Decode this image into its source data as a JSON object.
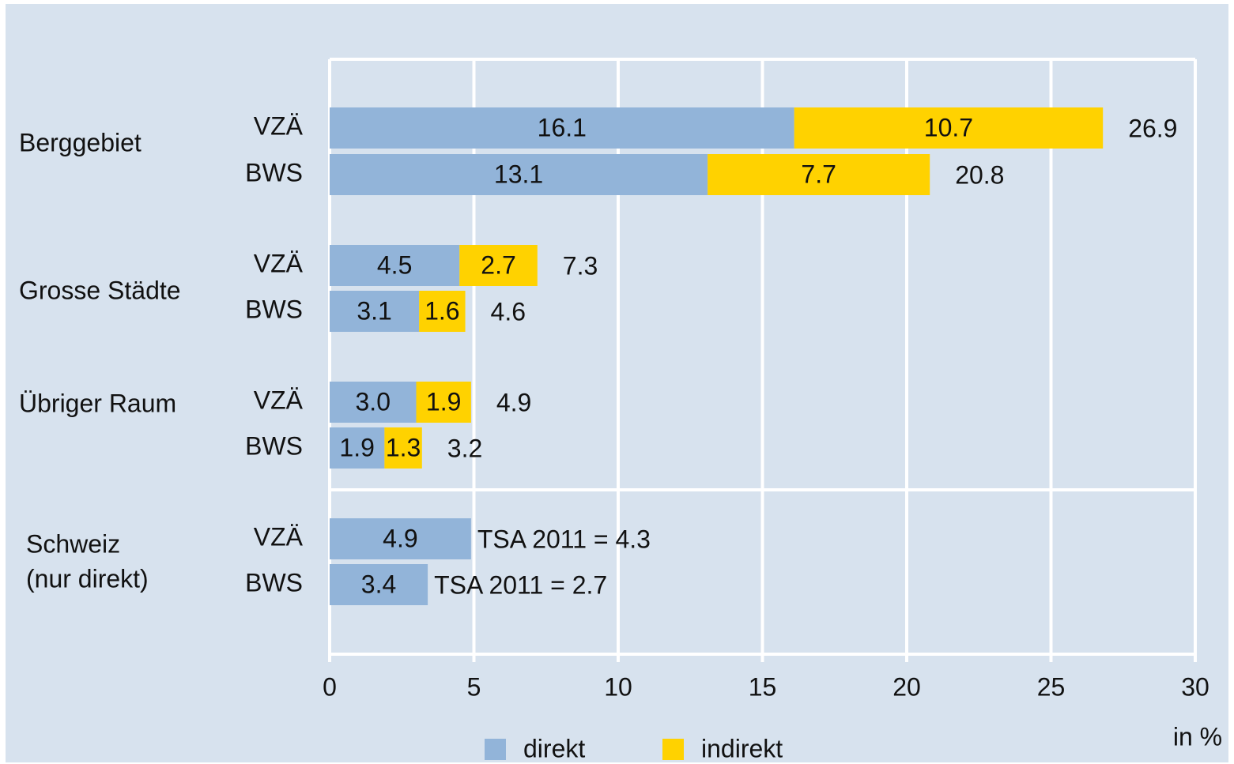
{
  "chart_data": {
    "type": "bar",
    "orientation": "horizontal",
    "stacked": true,
    "groups": [
      [
        "Berggebiet"
      ],
      [
        "Grosse Städte"
      ],
      [
        "Übriger Raum"
      ],
      [
        "Schweiz",
        "(nur direkt)"
      ]
    ],
    "categories": [
      "VZÄ",
      "BWS",
      "VZÄ",
      "BWS",
      "VZÄ",
      "BWS",
      "VZÄ",
      "BWS"
    ],
    "series": [
      {
        "name": "direkt",
        "color": "#92b4d9",
        "values": [
          16.1,
          13.1,
          4.5,
          3.1,
          3.0,
          1.9,
          4.9,
          3.4
        ],
        "value_labels": [
          "16.1",
          "13.1",
          "4.5",
          "3.1",
          "3.0",
          "1.9",
          "4.9",
          "3.4"
        ]
      },
      {
        "name": "indirekt",
        "color": "#ffd200",
        "values": [
          10.7,
          7.7,
          2.7,
          1.6,
          1.9,
          1.3,
          null,
          null
        ]
      }
    ],
    "totals": [
      26.9,
      20.8,
      7.3,
      4.6,
      4.9,
      3.2
    ],
    "annotations": [
      "TSA 2011 = 4.3",
      "TSA 2011 = 2.7"
    ],
    "xlim": [
      0,
      30
    ],
    "xticks": [
      0,
      5,
      10,
      15,
      20,
      25,
      30
    ],
    "x_label": "in %",
    "grid": true,
    "legend": "bottom"
  }
}
